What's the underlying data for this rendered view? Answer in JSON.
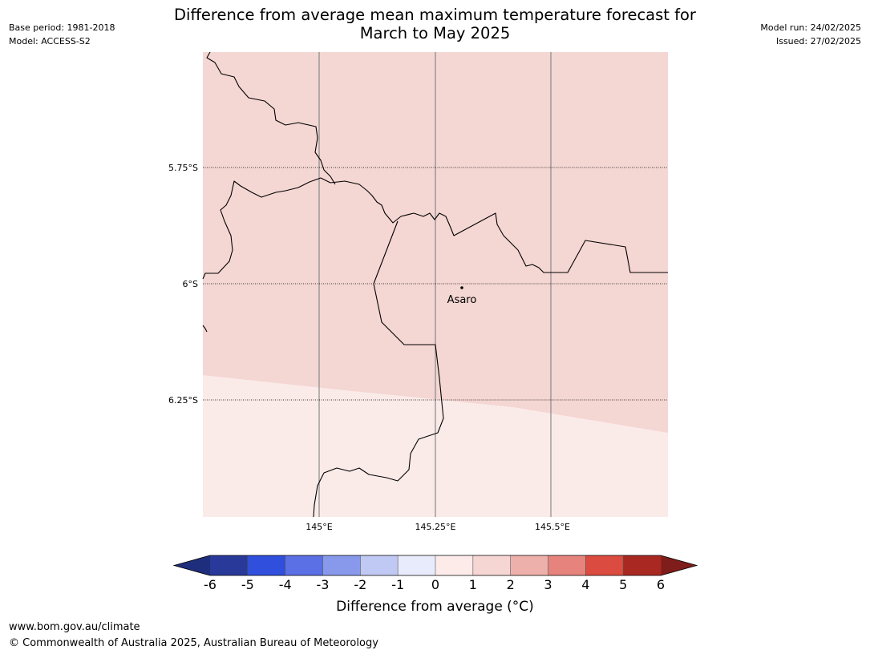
{
  "title_line1": "Difference from average mean maximum temperature forecast for",
  "title_line2": "March to May 2025",
  "meta_left": {
    "base_period": "Base period: 1981-2018",
    "model": "Model: ACCESS-S2"
  },
  "meta_right": {
    "model_run": "Model run: 24/02/2025",
    "issued": "Issued: 27/02/2025"
  },
  "map": {
    "lat_labels": [
      "5.75°S",
      "6°S",
      "6.25°S"
    ],
    "lon_labels": [
      "145°E",
      "145.25°E",
      "145.5°E"
    ],
    "place_label": "Asaro",
    "region_colors": {
      "upper": "#f4d6d3",
      "lower": "#faebe9"
    }
  },
  "colorbar": {
    "ticks": [
      "-6",
      "-5",
      "-4",
      "-3",
      "-2",
      "-1",
      "0",
      "1",
      "2",
      "3",
      "4",
      "5",
      "6"
    ],
    "colors": [
      "#28399a",
      "#2f4fdc",
      "#5a70e4",
      "#8899ec",
      "#c0c8f4",
      "#e8ebfb",
      "#fcebe9",
      "#f6d6d3",
      "#eeb0aa",
      "#e5837c",
      "#dc4b3f",
      "#aa2822"
    ],
    "extend_low_color": "#1f2e7c",
    "extend_high_color": "#7e1d19",
    "label": "Difference from average (°C)"
  },
  "footer": {
    "url": "www.bom.gov.au/climate",
    "copyright": "© Commonwealth of Australia 2025, Australian Bureau of Meteorology"
  }
}
